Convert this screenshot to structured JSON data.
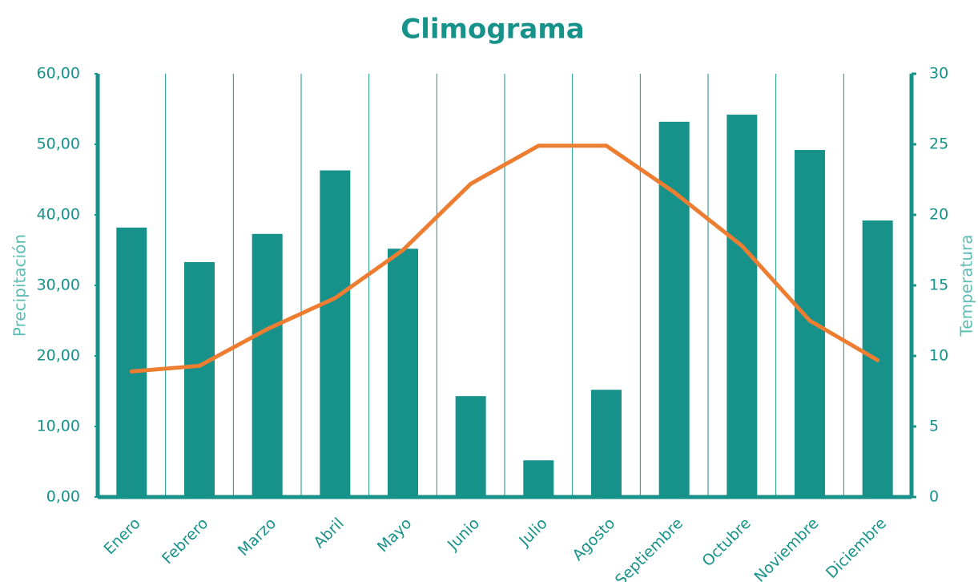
{
  "chart_data": {
    "type": "bar",
    "title": "Climograma",
    "categories": [
      "Enero",
      "Febrero",
      "Marzo",
      "Abril",
      "Mayo",
      "Junio",
      "Julio",
      "Agosto",
      "Septiembre",
      "Octubre",
      "Noviembre",
      "Diciembre"
    ],
    "series": [
      {
        "type": "bar",
        "color": "#17928a",
        "values": [
          38.2,
          33.3,
          37.3,
          46.3,
          35.2,
          14.3,
          5.2,
          15.2,
          53.2,
          54.2,
          49.2,
          39.2
        ]
      },
      {
        "type": "line",
        "axis": "y2",
        "color": "#ed7d31",
        "values": [
          8.9,
          9.3,
          11.9,
          14.1,
          17.5,
          22.2,
          24.9,
          24.9,
          21.6,
          17.8,
          12.5,
          9.7
        ]
      }
    ],
    "ylabel": "Precipitación",
    "y2label": "Temperatura",
    "ylim": [
      0,
      60
    ],
    "yticks": [
      {
        "value": 0,
        "label": "0,00"
      },
      {
        "value": 10,
        "label": "10,00"
      },
      {
        "value": 20,
        "label": "20,00"
      },
      {
        "value": 30,
        "label": "30,00"
      },
      {
        "value": 40,
        "label": "40,00"
      },
      {
        "value": 50,
        "label": "50,00"
      },
      {
        "value": 60,
        "label": "60,00"
      }
    ],
    "y2lim": [
      0,
      30
    ],
    "y2ticks": [
      0,
      5,
      10,
      15,
      20,
      25,
      30
    ]
  }
}
